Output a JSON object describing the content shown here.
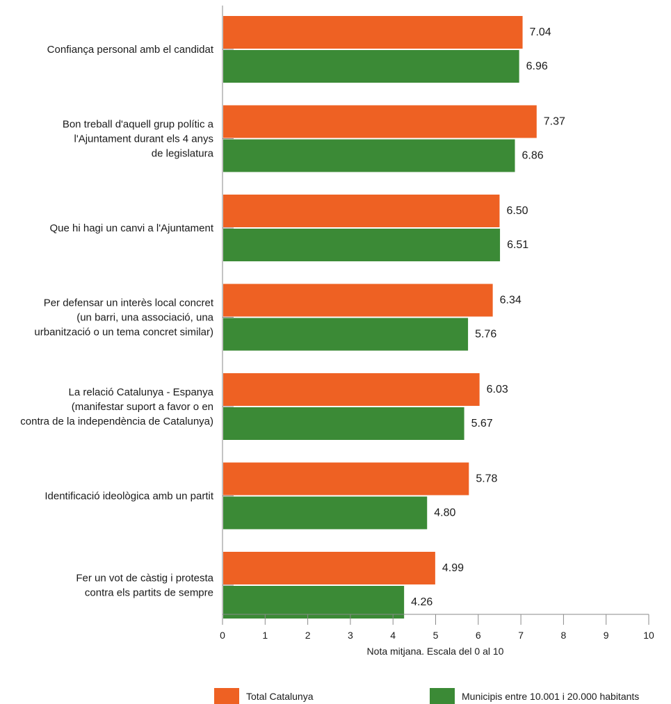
{
  "chart_data": {
    "type": "bar",
    "orientation": "horizontal",
    "categories": [
      [
        "Confiança personal amb el candidat"
      ],
      [
        "Bon treball d'aquell grup polític a",
        "l'Ajuntament durant els 4 anys",
        "de legislatura"
      ],
      [
        "Que hi hagi un canvi a l'Ajuntament"
      ],
      [
        "Per defensar un interès local concret",
        "(un barri, una associació, una",
        "urbanització o un tema concret similar)"
      ],
      [
        "La relació Catalunya - Espanya",
        "(manifestar suport a favor o en",
        "contra de la independència de Catalunya)"
      ],
      [
        "Identificació ideològica amb un partit"
      ],
      [
        "Fer un vot de càstig i protesta",
        "contra els partits de sempre"
      ]
    ],
    "series": [
      {
        "name": "Total Catalunya",
        "color": "#ee6123",
        "values": [
          7.04,
          7.37,
          6.5,
          6.34,
          6.03,
          5.78,
          4.99
        ],
        "labels": [
          "7.04",
          "7.37",
          "6.50",
          "6.34",
          "6.03",
          "5.78",
          "4.99"
        ]
      },
      {
        "name": "Municipis entre 10.001 i 20.000 habitants",
        "color": "#3b8a36",
        "values": [
          6.96,
          6.86,
          6.51,
          5.76,
          5.67,
          4.8,
          4.26
        ],
        "labels": [
          "6.96",
          "6.86",
          "6.51",
          "5.76",
          "5.67",
          "4.80",
          "4.26"
        ]
      }
    ],
    "xlabel": "Nota mitjana. Escala del 0 al 10",
    "ylabel": "",
    "title": "",
    "xlim": [
      0,
      10
    ],
    "xticks": [
      "0",
      "1",
      "2",
      "3",
      "4",
      "5",
      "6",
      "7",
      "8",
      "9",
      "10"
    ],
    "grid": false,
    "legend_position": "bottom"
  }
}
